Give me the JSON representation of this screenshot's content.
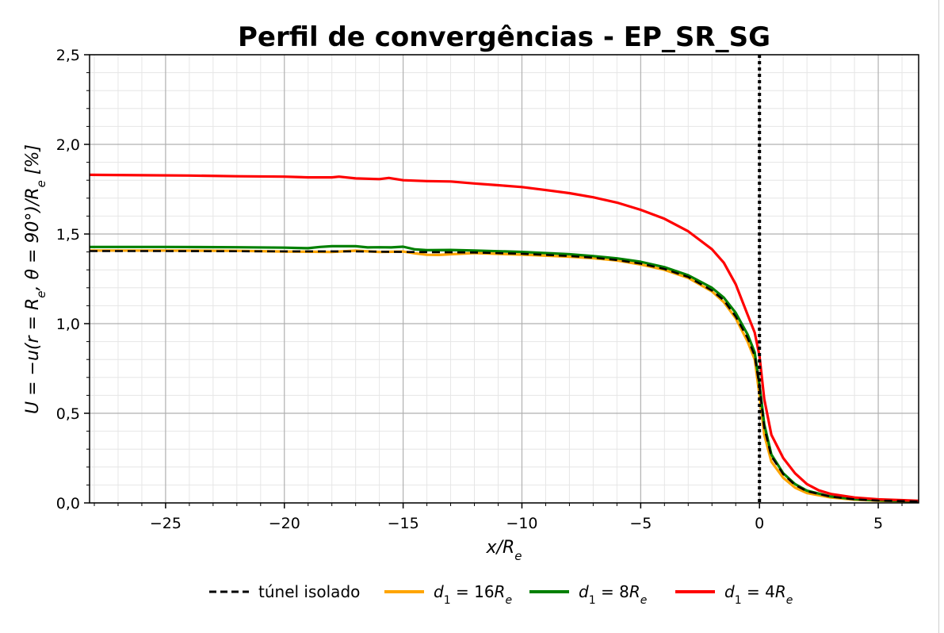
{
  "chart_data": {
    "type": "line",
    "title": "Perfil de convergências - EP_SR_SG",
    "xlabel": "x/R_e",
    "ylabel": "U = −u(r = R_e, θ = 90°)/R_e [%]",
    "xlim": [
      -28.2,
      6.7
    ],
    "ylim": [
      0.0,
      2.5
    ],
    "x_ticks": [
      -25,
      -20,
      -15,
      -10,
      -5,
      0,
      5
    ],
    "x_tick_labels": [
      "−25",
      "−20",
      "−15",
      "−10",
      "−5",
      "0",
      "5"
    ],
    "y_ticks": [
      0.0,
      0.5,
      1.0,
      1.5,
      2.0,
      2.5
    ],
    "y_tick_labels": [
      "0,0",
      "0,5",
      "1,0",
      "1,5",
      "2,0",
      "2,5"
    ],
    "grid": "major and minor",
    "vertical_reference_line": {
      "x": 0,
      "style": "dotted",
      "color": "#000000"
    },
    "legend_position": "bottom-center",
    "series": [
      {
        "name": "túnel isolado",
        "color": "#000000",
        "dash": "dashed",
        "points": [
          [
            -28.2,
            1.405
          ],
          [
            -25,
            1.405
          ],
          [
            -20,
            1.403
          ],
          [
            -17,
            1.403
          ],
          [
            -15,
            1.4
          ],
          [
            -13,
            1.398
          ],
          [
            -12,
            1.397
          ],
          [
            -10,
            1.39
          ],
          [
            -8,
            1.377
          ],
          [
            -7,
            1.368
          ],
          [
            -6,
            1.355
          ],
          [
            -5,
            1.335
          ],
          [
            -4,
            1.305
          ],
          [
            -3,
            1.26
          ],
          [
            -2,
            1.185
          ],
          [
            -1.5,
            1.13
          ],
          [
            -1,
            1.04
          ],
          [
            -0.5,
            0.92
          ],
          [
            -0.2,
            0.82
          ],
          [
            0,
            0.65
          ],
          [
            0.2,
            0.42
          ],
          [
            0.5,
            0.26
          ],
          [
            1,
            0.16
          ],
          [
            1.5,
            0.1
          ],
          [
            2,
            0.065
          ],
          [
            3,
            0.035
          ],
          [
            4,
            0.02
          ],
          [
            5,
            0.013
          ],
          [
            6.7,
            0.008
          ]
        ]
      },
      {
        "name": "d_1 = 16R_e",
        "color": "#ffa500",
        "dash": "solid",
        "points": [
          [
            -28.2,
            1.408
          ],
          [
            -25,
            1.408
          ],
          [
            -22,
            1.406
          ],
          [
            -20,
            1.402
          ],
          [
            -18,
            1.4
          ],
          [
            -17,
            1.407
          ],
          [
            -16,
            1.4
          ],
          [
            -15,
            1.402
          ],
          [
            -14.5,
            1.392
          ],
          [
            -14,
            1.384
          ],
          [
            -13.5,
            1.383
          ],
          [
            -13,
            1.387
          ],
          [
            -12,
            1.394
          ],
          [
            -10,
            1.385
          ],
          [
            -8,
            1.373
          ],
          [
            -7,
            1.365
          ],
          [
            -6,
            1.352
          ],
          [
            -5,
            1.33
          ],
          [
            -4,
            1.3
          ],
          [
            -3,
            1.255
          ],
          [
            -2,
            1.18
          ],
          [
            -1.5,
            1.12
          ],
          [
            -1,
            1.03
          ],
          [
            -0.5,
            0.9
          ],
          [
            -0.2,
            0.8
          ],
          [
            0,
            0.6
          ],
          [
            0.2,
            0.38
          ],
          [
            0.5,
            0.23
          ],
          [
            1,
            0.14
          ],
          [
            1.5,
            0.085
          ],
          [
            2,
            0.055
          ],
          [
            3,
            0.03
          ],
          [
            4,
            0.018
          ],
          [
            5,
            0.012
          ],
          [
            6.7,
            0.007
          ]
        ]
      },
      {
        "name": "d_1 = 8R_e",
        "color": "#008000",
        "dash": "solid",
        "points": [
          [
            -28.2,
            1.428
          ],
          [
            -25,
            1.428
          ],
          [
            -22,
            1.426
          ],
          [
            -20,
            1.424
          ],
          [
            -19,
            1.421
          ],
          [
            -18.5,
            1.428
          ],
          [
            -18,
            1.432
          ],
          [
            -17,
            1.432
          ],
          [
            -16.5,
            1.425
          ],
          [
            -16,
            1.426
          ],
          [
            -15.5,
            1.425
          ],
          [
            -15,
            1.429
          ],
          [
            -14.5,
            1.414
          ],
          [
            -14,
            1.41
          ],
          [
            -13,
            1.411
          ],
          [
            -12,
            1.408
          ],
          [
            -10,
            1.4
          ],
          [
            -8,
            1.387
          ],
          [
            -7,
            1.377
          ],
          [
            -6,
            1.364
          ],
          [
            -5,
            1.345
          ],
          [
            -4,
            1.315
          ],
          [
            -3,
            1.27
          ],
          [
            -2,
            1.2
          ],
          [
            -1.5,
            1.145
          ],
          [
            -1,
            1.06
          ],
          [
            -0.5,
            0.94
          ],
          [
            -0.2,
            0.84
          ],
          [
            0,
            0.66
          ],
          [
            0.2,
            0.44
          ],
          [
            0.5,
            0.27
          ],
          [
            1,
            0.165
          ],
          [
            1.5,
            0.105
          ],
          [
            2,
            0.068
          ],
          [
            3,
            0.036
          ],
          [
            4,
            0.021
          ],
          [
            5,
            0.014
          ],
          [
            6.7,
            0.008
          ]
        ]
      },
      {
        "name": "d_1 = 4R_e",
        "color": "#ff0000",
        "dash": "solid",
        "points": [
          [
            -28.2,
            1.83
          ],
          [
            -26,
            1.828
          ],
          [
            -24,
            1.826
          ],
          [
            -22,
            1.822
          ],
          [
            -20,
            1.82
          ],
          [
            -19,
            1.816
          ],
          [
            -18,
            1.816
          ],
          [
            -17.7,
            1.82
          ],
          [
            -17,
            1.81
          ],
          [
            -16,
            1.806
          ],
          [
            -15.6,
            1.813
          ],
          [
            -15,
            1.8
          ],
          [
            -14,
            1.795
          ],
          [
            -13,
            1.793
          ],
          [
            -12,
            1.782
          ],
          [
            -11,
            1.772
          ],
          [
            -10,
            1.762
          ],
          [
            -9,
            1.745
          ],
          [
            -8,
            1.728
          ],
          [
            -7,
            1.705
          ],
          [
            -6,
            1.675
          ],
          [
            -5,
            1.635
          ],
          [
            -4,
            1.585
          ],
          [
            -3,
            1.515
          ],
          [
            -2,
            1.415
          ],
          [
            -1.5,
            1.34
          ],
          [
            -1,
            1.22
          ],
          [
            -0.5,
            1.05
          ],
          [
            -0.2,
            0.95
          ],
          [
            0,
            0.82
          ],
          [
            0.2,
            0.58
          ],
          [
            0.5,
            0.38
          ],
          [
            1,
            0.25
          ],
          [
            1.5,
            0.165
          ],
          [
            2,
            0.105
          ],
          [
            2.5,
            0.07
          ],
          [
            3,
            0.05
          ],
          [
            4,
            0.03
          ],
          [
            5,
            0.02
          ],
          [
            6.7,
            0.012
          ]
        ]
      }
    ]
  },
  "legend": {
    "items": [
      {
        "label": "túnel isolado",
        "color": "#000000",
        "dash": "dashed",
        "math": false
      },
      {
        "label": "d_1 = 16R_e",
        "color": "#ffa500",
        "dash": "solid",
        "math": true,
        "var": "d",
        "sub": "1",
        "eq": " = 16",
        "rvar": "R",
        "rsub": "e"
      },
      {
        "label": "d_1 = 8R_e",
        "color": "#008000",
        "dash": "solid",
        "math": true,
        "var": "d",
        "sub": "1",
        "eq": " = 8",
        "rvar": "R",
        "rsub": "e"
      },
      {
        "label": "d_1 = 4R_e",
        "color": "#ff0000",
        "dash": "solid",
        "math": true,
        "var": "d",
        "sub": "1",
        "eq": " = 4",
        "rvar": "R",
        "rsub": "e"
      }
    ]
  }
}
